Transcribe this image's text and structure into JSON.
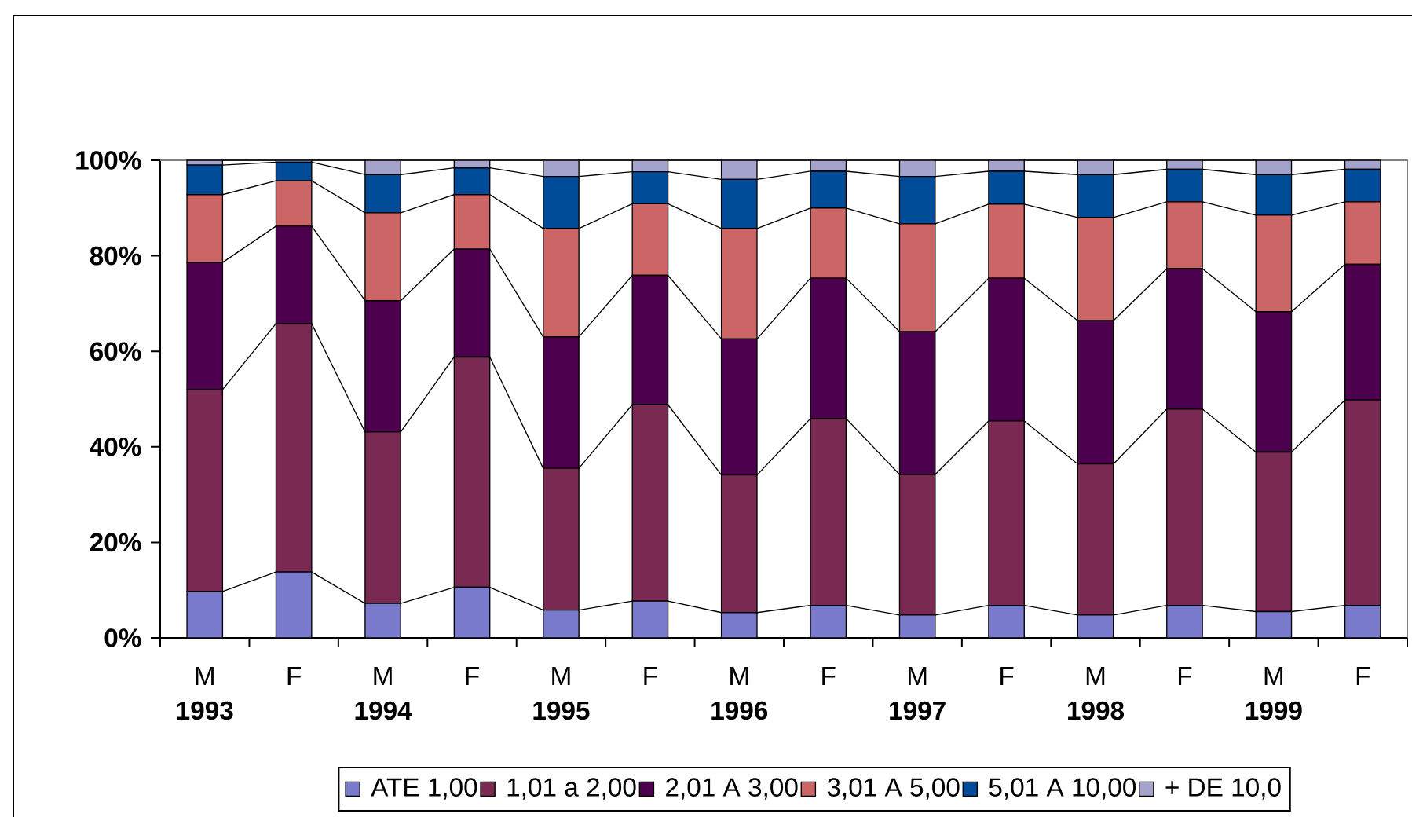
{
  "chart_data": {
    "type": "bar",
    "stacked": true,
    "legend": "bottom",
    "categories": [
      "M **1993**",
      "F",
      "M **1994**",
      "F",
      "M **1995**",
      "F",
      "M **1996**",
      "F",
      "M **1997**",
      "F",
      "M **1998**",
      "F",
      "M **1999**",
      "F"
    ],
    "series": [
      {
        "name": "ATE 1,00",
        "color": "#7a7acc",
        "values": [
          9.7,
          13.8,
          7.2,
          10.6,
          5.8,
          7.7,
          5.3,
          6.8,
          4.8,
          6.8,
          4.8,
          6.8,
          5.5,
          6.8
        ]
      },
      {
        "name": "1,01 a 2,00",
        "color": "#7a2952",
        "values": [
          42.3,
          52.0,
          35.9,
          48.2,
          29.7,
          41.1,
          28.8,
          39.1,
          29.4,
          38.6,
          31.6,
          41.1,
          33.4,
          43.0
        ]
      },
      {
        "name": "2,01 A 3,00",
        "color": "#4d004d",
        "values": [
          26.6,
          20.4,
          27.5,
          22.6,
          27.5,
          27.1,
          28.5,
          29.4,
          29.9,
          29.9,
          30.0,
          29.4,
          29.4,
          28.4
        ]
      },
      {
        "name": "3,01 A 5,00",
        "color": "#cc6666",
        "values": [
          14.2,
          9.5,
          18.4,
          11.4,
          22.7,
          15.0,
          23.1,
          14.7,
          22.6,
          15.5,
          21.6,
          14.0,
          20.2,
          13.1
        ]
      },
      {
        "name": "5,01 A 10,00",
        "color": "#004c99",
        "values": [
          6.2,
          3.9,
          8.0,
          5.6,
          10.9,
          6.7,
          10.3,
          7.7,
          9.9,
          6.9,
          9.0,
          6.8,
          8.5,
          6.8
        ]
      },
      {
        "name": "+ DE 10,0",
        "color": "#a3a3cc",
        "values": [
          1.0,
          0.4,
          3.0,
          1.6,
          3.4,
          2.4,
          4.0,
          2.3,
          3.4,
          2.3,
          3.0,
          1.9,
          3.0,
          1.9
        ]
      }
    ],
    "ylim": [
      0,
      100
    ],
    "yticks": [
      {
        "value": 0,
        "label": "0%"
      },
      {
        "value": 20,
        "label": "20%"
      },
      {
        "value": 40,
        "label": "40%"
      },
      {
        "value": 60,
        "label": "60%"
      },
      {
        "value": 80,
        "label": "80%"
      },
      {
        "value": 100,
        "label": "100%"
      }
    ]
  }
}
